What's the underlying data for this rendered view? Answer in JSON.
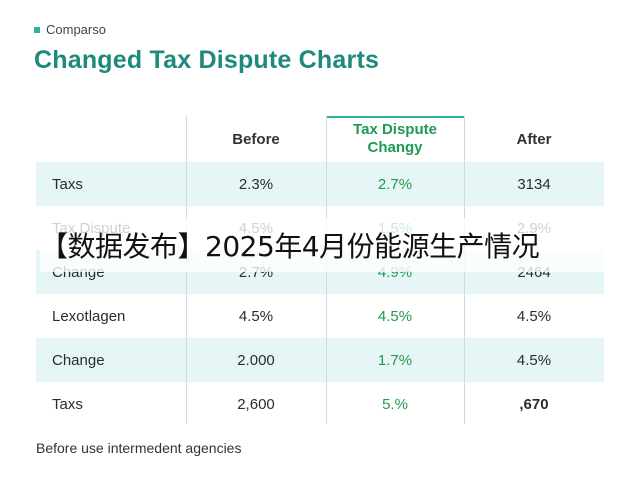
{
  "eyebrow": "Comparso",
  "title": "Changed Tax Dispute Charts",
  "table": {
    "headers": [
      "",
      "Before",
      "Tax Dispute",
      "After"
    ],
    "header_green_line2": "Changy",
    "rows": [
      [
        "Taxs",
        "2.3%",
        "2.7%",
        "3134"
      ],
      [
        "Tax Dispute",
        "4.5%",
        "1.5%",
        "2.9%"
      ],
      [
        "Change",
        "2.7%",
        "4.9%",
        "2464"
      ],
      [
        "Lexotlagen",
        "4.5%",
        "4.5%",
        "4.5%"
      ],
      [
        "Change",
        "2.000",
        "1.7%",
        "4.5%"
      ],
      [
        "Taxs",
        "2,600",
        "5.%",
        ",670"
      ]
    ]
  },
  "footer": "Before use intermedent agencies",
  "banner": "【数据发布】2025年4月份能源生产情况",
  "colors": {
    "accent": "#1d8a7b",
    "highlight": "#8fdcd2",
    "row_alt": "#e6f5f5",
    "green_text": "#1f9a52"
  }
}
